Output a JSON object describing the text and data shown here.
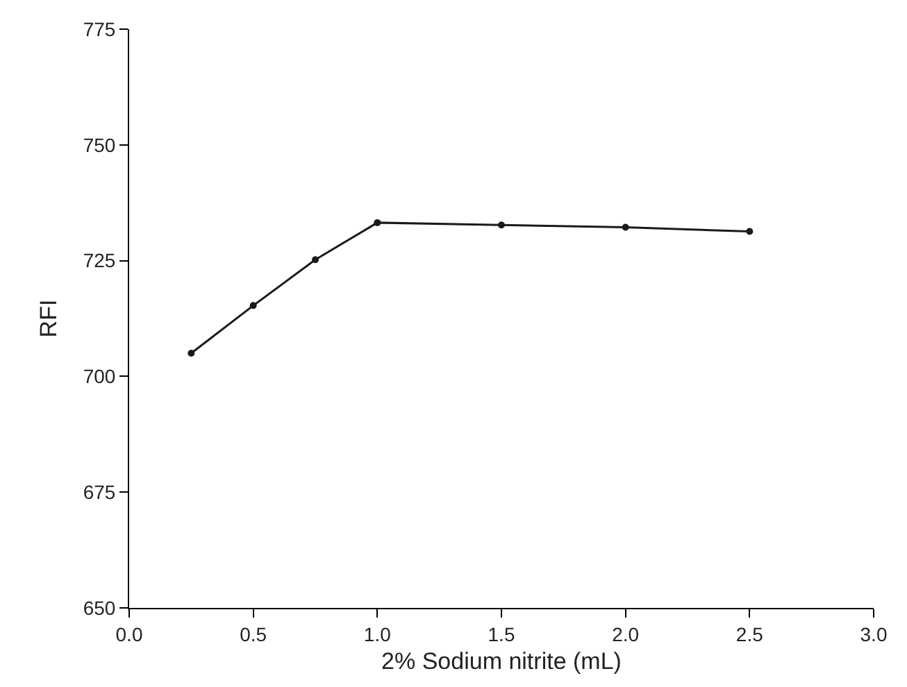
{
  "chart_data": {
    "type": "line",
    "xlabel": "2% Sodium nitrite (mL)",
    "ylabel": "RFI",
    "x": [
      0.25,
      0.5,
      0.75,
      1.0,
      1.5,
      2.0,
      2.5
    ],
    "series": [
      {
        "color": "#1a1a1a",
        "values": [
          705,
          715.3,
          725.2,
          733.2,
          732.7,
          732.2,
          731.3
        ]
      }
    ],
    "xlim": [
      0,
      3
    ],
    "xticks": [
      {
        "value": 0,
        "label": "0.0"
      },
      {
        "value": 0.5,
        "label": "0.5"
      },
      {
        "value": 1,
        "label": "1.0"
      },
      {
        "value": 1.5,
        "label": "1.5"
      },
      {
        "value": 2,
        "label": "2.0"
      },
      {
        "value": 2.5,
        "label": "2.5"
      },
      {
        "value": 3,
        "label": "3.0"
      }
    ],
    "ylim": [
      650,
      775
    ],
    "yticks": [
      650,
      675,
      700,
      725,
      750,
      775
    ],
    "grid": false,
    "marker": "circle",
    "line_style": "solid"
  }
}
